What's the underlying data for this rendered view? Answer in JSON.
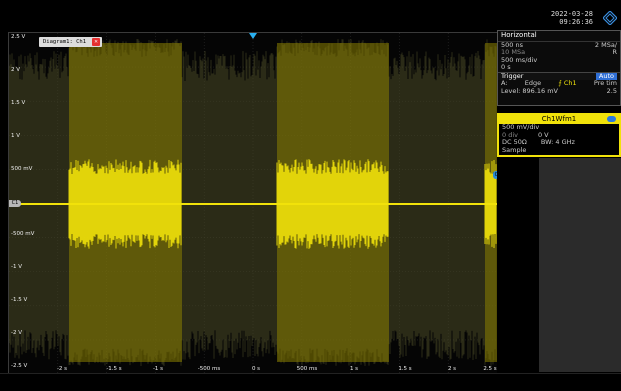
{
  "datetime": {
    "date": "2022-03-28",
    "time": "09:26:36"
  },
  "diagram": {
    "title": "Diagram1: Ch1",
    "close": "✕"
  },
  "y_labels": [
    "2.5 V",
    "2 V",
    "1.5 V",
    "1 V",
    "500 mV",
    "",
    "-500 mV",
    "-1 V",
    "-1.5 V",
    "-2 V",
    "-2.5 V"
  ],
  "x_labels": [
    "-2 s",
    "-1.5 s",
    "-1 s",
    "-500 ms",
    "0 s",
    "500 ms",
    "1 s",
    "1.5 s",
    "2 s",
    "2.5 s"
  ],
  "channel_marker": "C1",
  "trigger_marker": "C1",
  "horizontal": {
    "title": "Horizontal",
    "rows": [
      {
        "left": "500 ns",
        "right": "2 MSa/"
      },
      {
        "left": "10 MSa",
        "right": "R"
      },
      {
        "left": "500 ms/div",
        "right": ""
      },
      {
        "left": "0 s",
        "right": ""
      }
    ]
  },
  "trigger": {
    "title": "Trigger",
    "mode": "Auto",
    "line1_left": "A:",
    "line1_mid": "Edge",
    "line1_src": "Ch1",
    "line1_right": "Pre tim",
    "line2_left": "Level: 896.16 mV",
    "line2_right": "2.5"
  },
  "channel": {
    "title": "Ch1Wfm1",
    "scale": "500 mV/div",
    "offset_div": "0 div",
    "offset_v": "0 V",
    "coupling": "DC 50Ω",
    "bw": "BW: 4 GHz",
    "mode": "Sample"
  },
  "colors": {
    "trace": "#f1e20a",
    "accent": "#2a8bd6"
  }
}
